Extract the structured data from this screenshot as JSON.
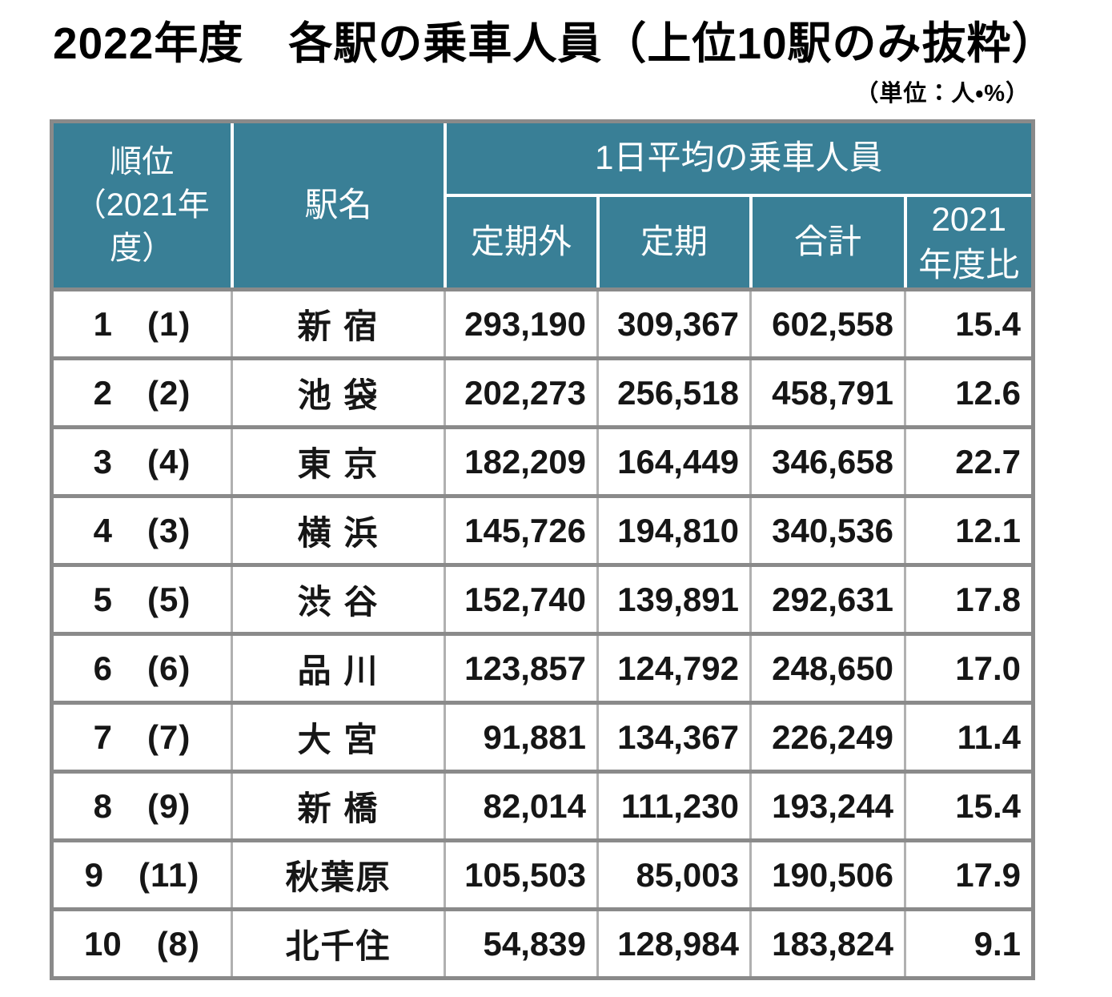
{
  "title": "2022年度　各駅の乗車人員（上位10駅のみ抜粋）",
  "unit_note": "（単位：人・%）",
  "colors": {
    "header_bg": "#397F96",
    "header_text": "#FFFFFF",
    "border_gray": "#8A8A8A",
    "border_light": "#B0B0B0"
  },
  "table": {
    "headers": {
      "rank": "順位\n（2021年度）",
      "station": "駅名",
      "group": "1日平均の乗車人員",
      "off_peak": "定期外",
      "commuter": "定期",
      "total": "合計",
      "yoy": "2021\n年度比"
    },
    "rows": [
      {
        "rank": "1",
        "prev": "(1)",
        "station": "新 宿",
        "off_peak": "293,190",
        "commuter": "309,367",
        "total": "602,558",
        "yoy": "15.4"
      },
      {
        "rank": "2",
        "prev": "(2)",
        "station": "池 袋",
        "off_peak": "202,273",
        "commuter": "256,518",
        "total": "458,791",
        "yoy": "12.6"
      },
      {
        "rank": "3",
        "prev": "(4)",
        "station": "東 京",
        "off_peak": "182,209",
        "commuter": "164,449",
        "total": "346,658",
        "yoy": "22.7"
      },
      {
        "rank": "4",
        "prev": "(3)",
        "station": "横 浜",
        "off_peak": "145,726",
        "commuter": "194,810",
        "total": "340,536",
        "yoy": "12.1"
      },
      {
        "rank": "5",
        "prev": "(5)",
        "station": "渋 谷",
        "off_peak": "152,740",
        "commuter": "139,891",
        "total": "292,631",
        "yoy": "17.8"
      },
      {
        "rank": "6",
        "prev": "(6)",
        "station": "品 川",
        "off_peak": "123,857",
        "commuter": "124,792",
        "total": "248,650",
        "yoy": "17.0"
      },
      {
        "rank": "7",
        "prev": "(7)",
        "station": "大 宮",
        "off_peak": "91,881",
        "commuter": "134,367",
        "total": "226,249",
        "yoy": "11.4"
      },
      {
        "rank": "8",
        "prev": "(9)",
        "station": "新 橋",
        "off_peak": "82,014",
        "commuter": "111,230",
        "total": "193,244",
        "yoy": "15.4"
      },
      {
        "rank": "9",
        "prev": "(11)",
        "station": "秋葉原",
        "off_peak": "105,503",
        "commuter": "85,003",
        "total": "190,506",
        "yoy": "17.9"
      },
      {
        "rank": "10",
        "prev": "(8)",
        "station": "北千住",
        "off_peak": "54,839",
        "commuter": "128,984",
        "total": "183,824",
        "yoy": "9.1"
      }
    ]
  },
  "chart_data": {
    "type": "table",
    "title": "2022年度　各駅の乗車人員（上位10駅のみ抜粋）",
    "unit": "人・%",
    "column_group": {
      "label": "1日平均の乗車人員",
      "spans": [
        "定期外",
        "定期",
        "合計",
        "2021年度比"
      ]
    },
    "columns": [
      "順位",
      "順位（2021年度）",
      "駅名",
      "定期外",
      "定期",
      "合計",
      "2021年度比"
    ],
    "rows": [
      {
        "rank": 1,
        "rank_2021": 1,
        "station": "新宿",
        "off_peak": 293190,
        "commuter": 309367,
        "total": 602558,
        "yoy_pct": 15.4
      },
      {
        "rank": 2,
        "rank_2021": 2,
        "station": "池袋",
        "off_peak": 202273,
        "commuter": 256518,
        "total": 458791,
        "yoy_pct": 12.6
      },
      {
        "rank": 3,
        "rank_2021": 4,
        "station": "東京",
        "off_peak": 182209,
        "commuter": 164449,
        "total": 346658,
        "yoy_pct": 22.7
      },
      {
        "rank": 4,
        "rank_2021": 3,
        "station": "横浜",
        "off_peak": 145726,
        "commuter": 194810,
        "total": 340536,
        "yoy_pct": 12.1
      },
      {
        "rank": 5,
        "rank_2021": 5,
        "station": "渋谷",
        "off_peak": 152740,
        "commuter": 139891,
        "total": 292631,
        "yoy_pct": 17.8
      },
      {
        "rank": 6,
        "rank_2021": 6,
        "station": "品川",
        "off_peak": 123857,
        "commuter": 124792,
        "total": 248650,
        "yoy_pct": 17.0
      },
      {
        "rank": 7,
        "rank_2021": 7,
        "station": "大宮",
        "off_peak": 91881,
        "commuter": 134367,
        "total": 226249,
        "yoy_pct": 11.4
      },
      {
        "rank": 8,
        "rank_2021": 9,
        "station": "新橋",
        "off_peak": 82014,
        "commuter": 111230,
        "total": 193244,
        "yoy_pct": 15.4
      },
      {
        "rank": 9,
        "rank_2021": 11,
        "station": "秋葉原",
        "off_peak": 105503,
        "commuter": 85003,
        "total": 190506,
        "yoy_pct": 17.9
      },
      {
        "rank": 10,
        "rank_2021": 8,
        "station": "北千住",
        "off_peak": 54839,
        "commuter": 128984,
        "total": 183824,
        "yoy_pct": 9.1
      }
    ]
  }
}
